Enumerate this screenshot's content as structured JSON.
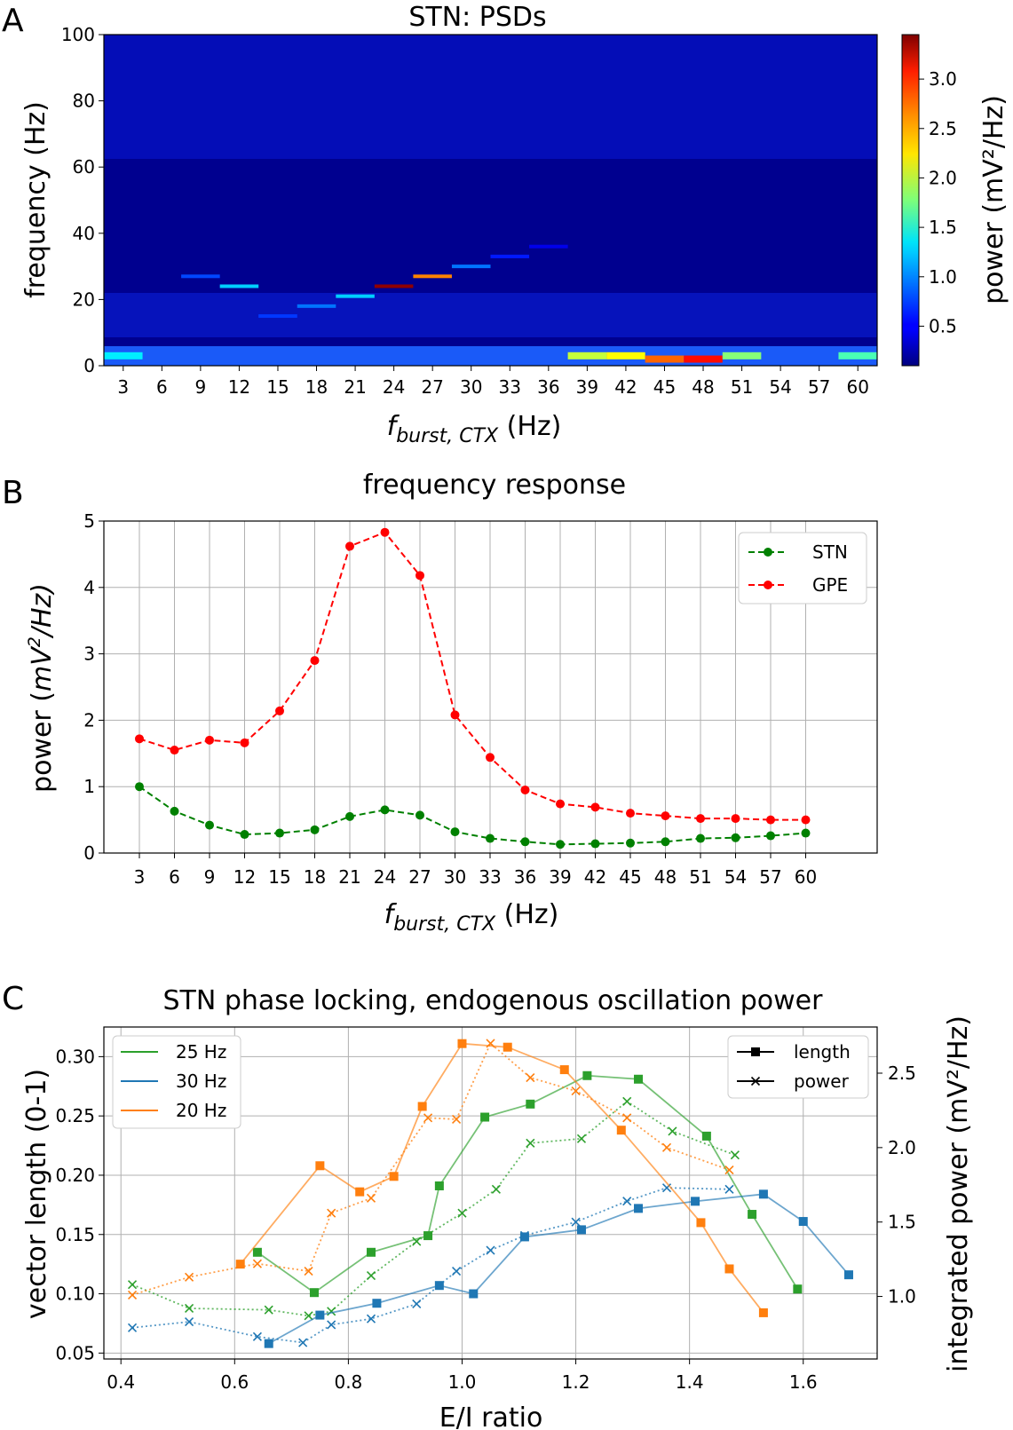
{
  "panels": {
    "a": "A",
    "b": "B",
    "c": "C"
  },
  "chart_data": [
    {
      "type": "heatmap",
      "title": "STN: PSDs",
      "xlabel_main": "f",
      "xlabel_sub": "burst, CTX",
      "xlabel_unit": " (Hz)",
      "ylabel": "frequency (Hz)",
      "categories": [
        "3",
        "6",
        "9",
        "12",
        "15",
        "18",
        "21",
        "24",
        "27",
        "30",
        "33",
        "36",
        "39",
        "42",
        "45",
        "48",
        "51",
        "54",
        "57",
        "60"
      ],
      "y_ticks": [
        "0",
        "20",
        "40",
        "60",
        "80",
        "100"
      ],
      "ylim": [
        0,
        100
      ],
      "colorbar": {
        "label": "power (mV²/Hz)",
        "ticks": [
          "0.5",
          "1.0",
          "1.5",
          "2.0",
          "2.5",
          "3.0"
        ],
        "range": [
          0.1,
          3.45
        ],
        "colormap": "jet"
      },
      "peaks": [
        {
          "x": "3",
          "freq": 3,
          "power": 1.3
        },
        {
          "x": "9",
          "freq": 27,
          "power": 0.75
        },
        {
          "x": "12",
          "freq": 24,
          "power": 1.2
        },
        {
          "x": "15",
          "freq": 15,
          "power": 0.7
        },
        {
          "x": "18",
          "freq": 18,
          "power": 0.9
        },
        {
          "x": "21",
          "freq": 21,
          "power": 1.2
        },
        {
          "x": "24",
          "freq": 24,
          "power": 3.4
        },
        {
          "x": "27",
          "freq": 27,
          "power": 2.6
        },
        {
          "x": "30",
          "freq": 30,
          "power": 0.9
        },
        {
          "x": "33",
          "freq": 33,
          "power": 0.6
        },
        {
          "x": "36",
          "freq": 36,
          "power": 0.45
        },
        {
          "x": "39",
          "freq": 3,
          "power": 2.0
        },
        {
          "x": "42",
          "freq": 3,
          "power": 2.2
        },
        {
          "x": "45",
          "freq": 2,
          "power": 2.7
        },
        {
          "x": "48",
          "freq": 2,
          "power": 3.0
        },
        {
          "x": "51",
          "freq": 3,
          "power": 1.8
        },
        {
          "x": "60",
          "freq": 3,
          "power": 1.6
        }
      ]
    },
    {
      "type": "line",
      "title": "frequency response",
      "xlabel_main": "f",
      "xlabel_sub": "burst, CTX",
      "xlabel_unit": " (Hz)",
      "ylabel_text": "power (",
      "ylabel_unit": "mV",
      "ylabel_sup": "2",
      "ylabel_tail": "/Hz)",
      "categories": [
        "3",
        "6",
        "9",
        "12",
        "15",
        "18",
        "21",
        "24",
        "27",
        "30",
        "33",
        "36",
        "39",
        "42",
        "45",
        "48",
        "51",
        "54",
        "57",
        "60"
      ],
      "y_ticks": [
        "0",
        "1",
        "2",
        "3",
        "4",
        "5"
      ],
      "ylim": [
        0,
        5
      ],
      "grid": true,
      "legend": "top-right",
      "series": [
        {
          "name": "STN",
          "color": "#008000",
          "values": [
            1.0,
            0.63,
            0.42,
            0.28,
            0.3,
            0.35,
            0.55,
            0.65,
            0.57,
            0.32,
            0.22,
            0.17,
            0.13,
            0.14,
            0.15,
            0.17,
            0.22,
            0.23,
            0.26,
            0.3
          ]
        },
        {
          "name": "GPE",
          "color": "#ff0000",
          "values": [
            1.72,
            1.55,
            1.7,
            1.66,
            2.14,
            2.9,
            4.62,
            4.83,
            4.18,
            2.08,
            1.44,
            0.95,
            0.74,
            0.69,
            0.6,
            0.56,
            0.52,
            0.52,
            0.5,
            0.5
          ]
        }
      ]
    },
    {
      "type": "line",
      "title": "STN phase locking, endogenous oscillation power",
      "xlabel": "E/I ratio",
      "ylabel": "vector length (0-1)",
      "ylabel_right": "integrated power (mV²/Hz)",
      "x_ticks": [
        "0.4",
        "0.6",
        "0.8",
        "1.0",
        "1.2",
        "1.4",
        "1.6"
      ],
      "xlim": [
        0.37,
        1.73
      ],
      "y_ticks": [
        "0.05",
        "0.10",
        "0.15",
        "0.20",
        "0.25",
        "0.30"
      ],
      "ylim": [
        0.045,
        0.325
      ],
      "y2_ticks": [
        "1.0",
        "1.5",
        "2.0",
        "2.5"
      ],
      "y2lim": [
        0.58,
        2.81
      ],
      "grid": true,
      "legend_colors": "top-left",
      "legend_markers": "top-right",
      "marker_legend": [
        {
          "label": "length",
          "marker": "square"
        },
        {
          "label": "power",
          "marker": "x"
        }
      ],
      "series": [
        {
          "name": "25 Hz",
          "color": "#2ca02c",
          "length": {
            "x": [
              0.64,
              0.74,
              0.84,
              0.94,
              0.96,
              1.04,
              1.12,
              1.22,
              1.31,
              1.43,
              1.51,
              1.59
            ],
            "y": [
              0.135,
              0.101,
              0.135,
              0.149,
              0.191,
              0.249,
              0.26,
              0.284,
              0.281,
              0.233,
              0.167,
              0.104
            ]
          },
          "power": {
            "x": [
              0.42,
              0.52,
              0.66,
              0.73,
              0.77,
              0.84,
              0.92,
              1.0,
              1.06,
              1.12,
              1.21,
              1.29,
              1.37,
              1.48
            ],
            "y": [
              1.08,
              0.92,
              0.91,
              0.87,
              0.9,
              1.14,
              1.37,
              1.56,
              1.72,
              2.03,
              2.06,
              2.31,
              2.11,
              1.95
            ]
          }
        },
        {
          "name": "30 Hz",
          "color": "#1f77b4",
          "length": {
            "x": [
              0.66,
              0.75,
              0.85,
              0.96,
              1.02,
              1.11,
              1.21,
              1.31,
              1.41,
              1.53,
              1.6,
              1.68
            ],
            "y": [
              0.058,
              0.082,
              0.092,
              0.107,
              0.1,
              0.148,
              0.154,
              0.172,
              0.178,
              0.184,
              0.161,
              0.116
            ]
          },
          "power": {
            "x": [
              0.42,
              0.52,
              0.64,
              0.72,
              0.77,
              0.84,
              0.92,
              0.99,
              1.05,
              1.11,
              1.2,
              1.29,
              1.36,
              1.47
            ],
            "y": [
              0.79,
              0.83,
              0.73,
              0.69,
              0.81,
              0.85,
              0.95,
              1.17,
              1.31,
              1.41,
              1.5,
              1.64,
              1.73,
              1.72
            ]
          }
        },
        {
          "name": "20 Hz",
          "color": "#ff7f0e",
          "length": {
            "x": [
              0.61,
              0.75,
              0.82,
              0.88,
              0.93,
              1.0,
              1.08,
              1.18,
              1.28,
              1.42,
              1.47,
              1.53
            ],
            "y": [
              0.125,
              0.208,
              0.186,
              0.199,
              0.258,
              0.311,
              0.308,
              0.289,
              0.238,
              0.16,
              0.121,
              0.084
            ]
          },
          "power": {
            "x": [
              0.42,
              0.52,
              0.64,
              0.73,
              0.77,
              0.84,
              0.94,
              0.99,
              1.05,
              1.12,
              1.2,
              1.29,
              1.36,
              1.47
            ],
            "y": [
              1.01,
              1.13,
              1.22,
              1.17,
              1.56,
              1.66,
              2.2,
              2.19,
              2.7,
              2.47,
              2.38,
              2.2,
              2.0,
              1.85
            ]
          }
        }
      ]
    }
  ]
}
